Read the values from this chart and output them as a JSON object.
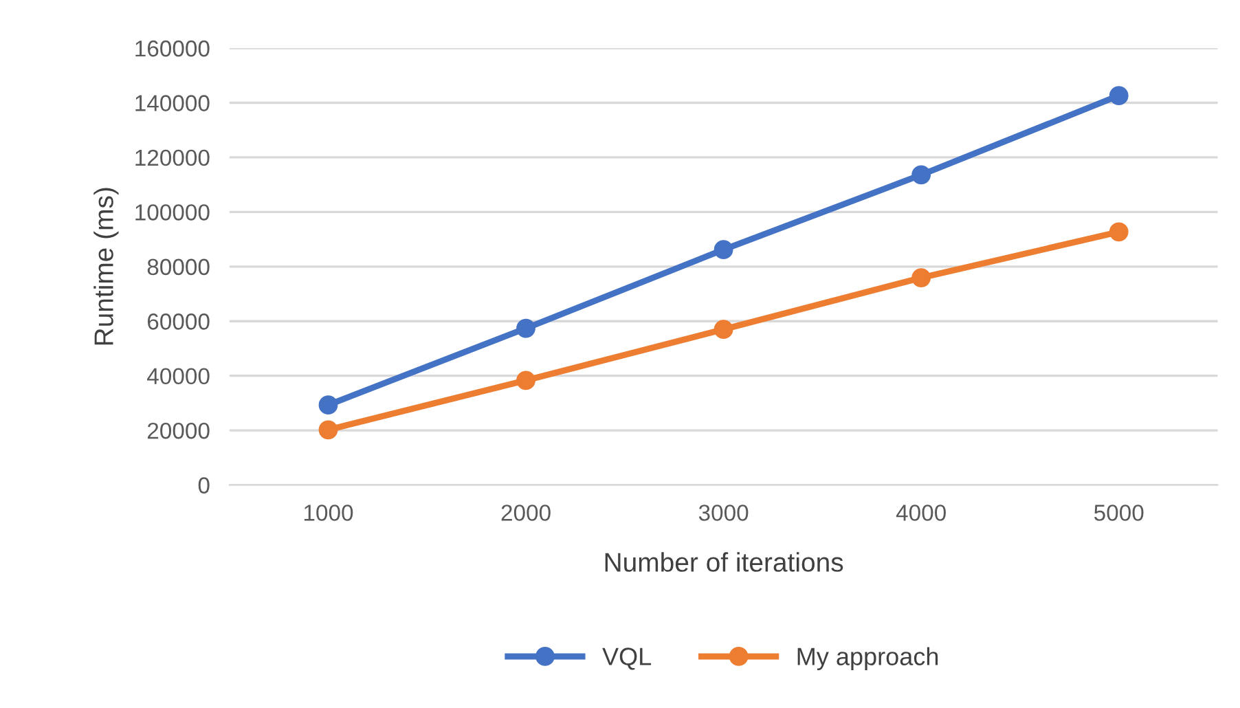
{
  "chart_data": {
    "type": "line",
    "xlabel": "Number of iterations",
    "ylabel": "Runtime (ms)",
    "categories": [
      "1000",
      "2000",
      "3000",
      "4000",
      "5000"
    ],
    "series": [
      {
        "name": "VQL",
        "color": "#4472c4",
        "values": [
          29300,
          57400,
          86200,
          113600,
          142600
        ]
      },
      {
        "name": "My approach",
        "color": "#ed7d31",
        "values": [
          20200,
          38300,
          57000,
          75900,
          92700
        ]
      }
    ],
    "ylim": [
      0,
      160000
    ],
    "yticks": [
      0,
      20000,
      40000,
      60000,
      80000,
      100000,
      120000,
      140000,
      160000
    ],
    "grid": "y",
    "legend": "bottom",
    "marker": "circle",
    "line_style": "solid"
  }
}
